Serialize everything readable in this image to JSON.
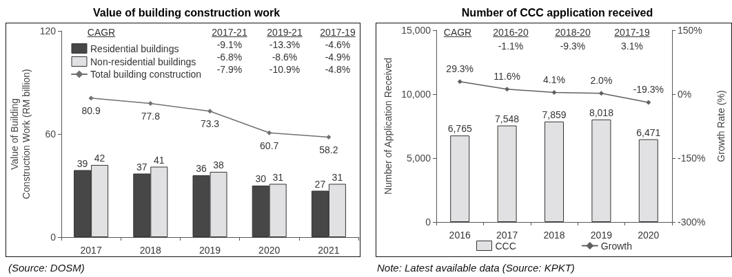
{
  "chart_data": [
    {
      "type": "bar",
      "title": "Value of building construction work",
      "ylabel": "Value of Building Construction Work (RM billion)",
      "categories": [
        "2017",
        "2018",
        "2019",
        "2020",
        "2021"
      ],
      "series": [
        {
          "name": "Residential buildings",
          "color": "#474747",
          "values": [
            39,
            37,
            36,
            30,
            27
          ]
        },
        {
          "name": "Non-residential buildings",
          "color": "#e1e1e3",
          "values": [
            42,
            41,
            38,
            31,
            31
          ]
        },
        {
          "name": "Total building construction",
          "type": "line",
          "color": "#707070",
          "values": [
            80.9,
            77.8,
            73.3,
            60.7,
            58.2
          ]
        }
      ],
      "ylim": [
        0,
        120
      ],
      "yticks": [
        0,
        60,
        120
      ],
      "grid": false,
      "legend": "top left",
      "marker": "diamond",
      "data_labels": true,
      "annotations": [
        "CAGR",
        "2017-21",
        "2019-21",
        "2017-19",
        "-9.1%",
        "-13.3%",
        "-4.6%",
        "-6.8%",
        "-8.6%",
        "-4.9%",
        "-7.9%",
        "-10.9%",
        "-4.8%",
        "(Source: DOSM)"
      ]
    },
    {
      "type": "bar",
      "title": "Number of CCC application received",
      "ylabel": "Number of Application Received",
      "y2label": "Growth Rate (%)",
      "categories": [
        "2016",
        "2017",
        "2018",
        "2019",
        "2020"
      ],
      "series": [
        {
          "name": "CCC",
          "color": "#e1e1e3",
          "values": [
            6765,
            7548,
            7859,
            8018,
            6471
          ],
          "value_labels": [
            "6,765",
            "7,548",
            "7,859",
            "8,018",
            "6,471"
          ]
        },
        {
          "name": "Growth",
          "type": "line",
          "axis": "y2",
          "color": "#606060",
          "values": [
            29.3,
            11.6,
            4.1,
            2.0,
            -19.3
          ],
          "value_labels": [
            "29.3%",
            "11.6%",
            "4.1%",
            "2.0%",
            "-19.3%"
          ]
        }
      ],
      "ylim": [
        0,
        15000
      ],
      "yticks": [
        0,
        {
          "value": 5000,
          "label": "5,000"
        },
        {
          "value": 10000,
          "label": "10,000"
        },
        {
          "value": 15000,
          "label": "15,000"
        }
      ],
      "y2lim": [
        -300,
        150
      ],
      "y2ticks": [
        {
          "value": -300,
          "label": "-300%"
        },
        {
          "value": -150,
          "label": "-150%"
        },
        {
          "value": 0,
          "label": "0%"
        },
        {
          "value": 150,
          "label": "150%"
        }
      ],
      "grid": false,
      "legend": "bottom",
      "marker": "diamond",
      "annotations": [
        "CAGR",
        "2016-20",
        "2018-20",
        "2017-19",
        "-1.1%",
        "-9.3%",
        "3.1%",
        "Note: Latest available data (Source: KPKT)"
      ]
    }
  ]
}
